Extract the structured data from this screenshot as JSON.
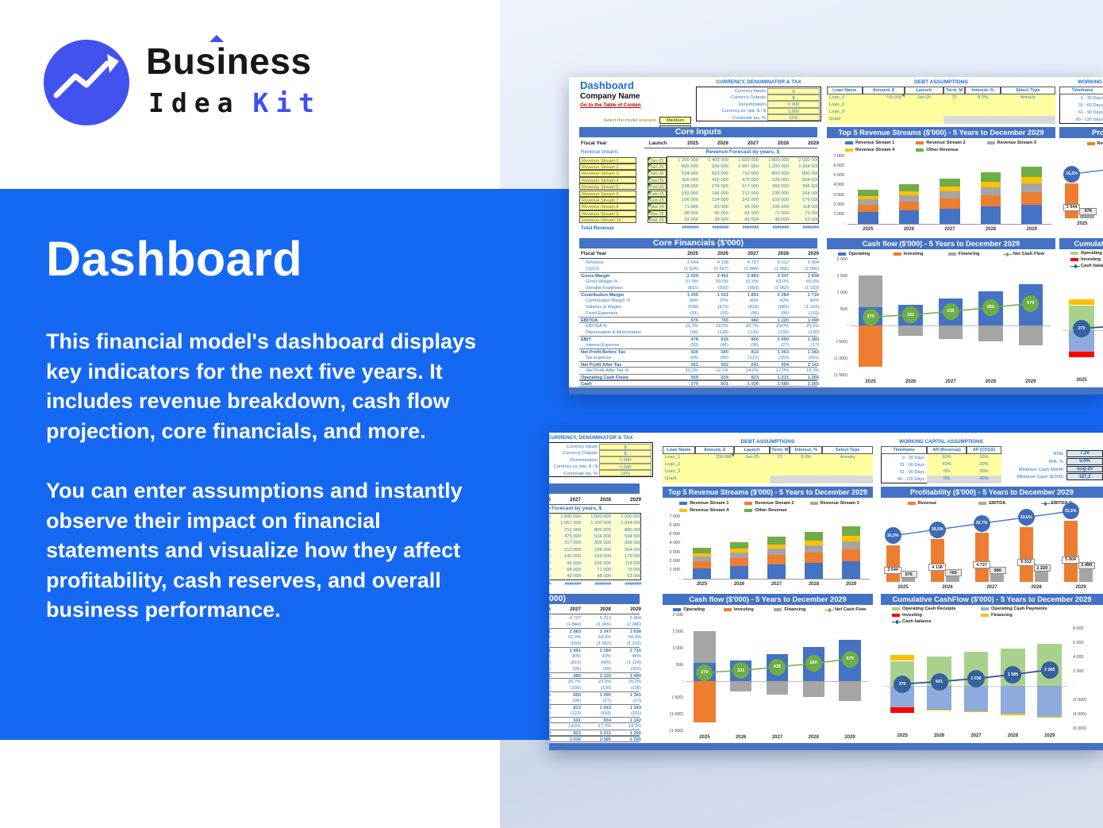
{
  "page": {
    "logo": {
      "brand": "Business",
      "line2_dark": "Idea",
      "line2_accent": "Kit",
      "accent_color": "#3B4FF0"
    },
    "hero": {
      "title": "Dashboard",
      "p1_lines": [
        "This financial model's dashboard displays",
        "key indicators for the next five years. It",
        "includes revenue breakdown, cash flow",
        "projection, core financials, and more."
      ],
      "p2_lines": [
        "You can enter assumptions and instantly",
        "observe their impact on financial",
        "statements and visualize how they affect",
        "profitability, cash reserves, and overall",
        "business performance."
      ]
    },
    "colors": {
      "panel_blue": "#1568F2",
      "header_bar_blue": "#4472C4",
      "input_yellow": "#FFFFA0",
      "link_red": "#C00000",
      "value_blue": "#2E78C0"
    }
  },
  "dashboard": {
    "title": "Dashboard",
    "company": "Company Name",
    "toc_link": "Go to the Table of Conten",
    "scenario": {
      "label": "Select the model scenario",
      "value": "Medium"
    },
    "inventory": {
      "label": "Inventory, %",
      "value": "30.0%"
    },
    "currency_table": {
      "title": "CURRENCY, DENOMINATOR & TAX",
      "rows": [
        [
          "Currency Inputs",
          "$"
        ],
        [
          "Currency Outputs",
          "$"
        ],
        [
          "Denomination",
          "1 000"
        ],
        [
          "Currency ex rate, $ / $",
          "1,000"
        ],
        [
          "Corporate tax, %",
          "15%"
        ]
      ]
    },
    "debt_table": {
      "title": "DEBT ASSUMPTIONS",
      "headers": [
        "Loan Name",
        "Amount, $",
        "Launch",
        "Term, M",
        "Interest, %",
        "Select Type"
      ],
      "rows": [
        [
          "Loan_1",
          "700 000",
          "Jan-25",
          "72",
          "8.0%",
          "Annuity"
        ],
        [
          "Loan_2",
          "",
          "",
          "",
          "",
          ""
        ],
        [
          "Loan_3",
          "",
          "",
          "",
          "",
          ""
        ],
        [
          "Grant",
          "",
          "",
          "",
          "",
          ""
        ]
      ]
    },
    "wc_table": {
      "title": "WORKING CAPITAL ASSUMPTIONS",
      "headers": [
        "Timeframe",
        "AR (Revenue)",
        "AP (COGS)"
      ],
      "rows": [
        [
          "0 - 30 Days",
          "60%",
          "10%"
        ],
        [
          "31 - 60 Days",
          "40%",
          "20%"
        ],
        [
          "61 - 90 Days",
          "0%",
          "30%"
        ],
        [
          "90 - 120 Days",
          "0%",
          "40%"
        ]
      ]
    },
    "kpis": [
      [
        "ROE",
        "7,20"
      ],
      [
        "IRR, %",
        "5,4%"
      ],
      [
        "Minimum Cash Month",
        "Aug-25"
      ],
      [
        "Minimum Cash ($'000)",
        "187,2"
      ]
    ],
    "core_inputs": {
      "title": "Core Inputs",
      "fiscal_year_label": "Fiscal Year",
      "launch_label": "Launch",
      "years": [
        "2025",
        "2026",
        "2027",
        "2028",
        "2029"
      ],
      "streams_label": "Revenue streams",
      "forecast_label": "Revenue Forecast by years, $",
      "rows": [
        {
          "name": "Revenue Stream 1",
          "launch": "Jan-25",
          "values": [
            "1 200 000",
            "1 400 000",
            "1 600 000",
            "1 800 000",
            "2 000 000"
          ]
        },
        {
          "name": "Revenue Stream 2",
          "launch": "Jan-25",
          "values": [
            "800 000",
            "934 000",
            "1 067 000",
            "1 200 000",
            "1 334 000"
          ]
        },
        {
          "name": "Revenue Stream 3",
          "launch": "Jan-25",
          "values": [
            "534 000",
            "623 000",
            "712 000",
            "800 000",
            "890 000"
          ]
        },
        {
          "name": "Revenue Stream 4",
          "launch": "Jan-25",
          "values": [
            "356 000",
            "416 000",
            "475 000",
            "534 000",
            "594 000"
          ]
        },
        {
          "name": "Revenue Stream 5",
          "launch": "Feb-25",
          "values": [
            "238 000",
            "278 000",
            "317 000",
            "356 000",
            "396 000"
          ]
        },
        {
          "name": "Revenue Stream 6",
          "launch": "Feb-25",
          "values": [
            "159 000",
            "186 000",
            "212 000",
            "238 000",
            "264 000"
          ]
        },
        {
          "name": "Revenue Stream 7",
          "launch": "Feb-25",
          "values": [
            "106 000",
            "124 000",
            "142 000",
            "159 000",
            "176 000"
          ]
        },
        {
          "name": "Revenue Stream 8",
          "launch": "Mar-25",
          "values": [
            "71 000",
            "83 000",
            "95 000",
            "106 000",
            "118 000"
          ]
        },
        {
          "name": "Revenue Stream 9",
          "launch": "Mar-25",
          "values": [
            "48 000",
            "56 000",
            "64 000",
            "71 000",
            "79 000"
          ]
        },
        {
          "name": "Revenue Stream 10",
          "launch": "Mar-25",
          "values": [
            "32 000",
            "38 000",
            "43 000",
            "48 000",
            "53 000"
          ]
        }
      ],
      "total_label": "Total Revenue",
      "total_values": [
        "#######",
        "#######",
        "#######",
        "#######",
        "#######"
      ]
    },
    "core_financials": {
      "title": "Core Financials ($'000)",
      "fiscal_year_label": "Fiscal Year",
      "years": [
        "2025",
        "2026",
        "2027",
        "2028",
        "2029"
      ],
      "rows": [
        {
          "label": "Revenue",
          "style": "plain",
          "values": [
            "3 544",
            "4 138",
            "4 727",
            "5 312",
            "5 904"
          ]
        },
        {
          "label": "COGS",
          "style": "plain",
          "values": [
            "(1 524)",
            "(1 697)",
            "(1 844)",
            "(1 965)",
            "(2 066)"
          ]
        },
        {
          "label": "Gross Margin",
          "style": "total",
          "values": [
            "2 020",
            "2 441",
            "2 883",
            "3 347",
            "3 838"
          ]
        },
        {
          "label": "Gross Margin %",
          "style": "pct",
          "values": [
            "57,0%",
            "59,0%",
            "61,0%",
            "63,0%",
            "65,0%"
          ]
        },
        {
          "label": "Variable Expenses",
          "style": "plain",
          "values": [
            "(815)",
            "(910)",
            "(993)",
            "(1 062)",
            "(1 122)"
          ]
        },
        {
          "label": "Contribution Margin",
          "style": "total",
          "values": [
            "1 205",
            "1 531",
            "1 891",
            "2 284",
            "2 716"
          ]
        },
        {
          "label": "Contribution Margin %",
          "style": "pct",
          "values": [
            "34%",
            "37%",
            "40%",
            "43%",
            "46%"
          ]
        },
        {
          "label": "Salaries & Wages",
          "style": "plain",
          "values": [
            "(538)",
            "(673)",
            "(815)",
            "(965)",
            "(1 124)"
          ]
        },
        {
          "label": "Fixed Expenses",
          "style": "plain",
          "values": [
            "(91)",
            "(93)",
            "(96)",
            "(99)",
            "(102)"
          ]
        },
        {
          "label": "EBITDA",
          "style": "total2",
          "values": [
            "576",
            "765",
            "980",
            "1 220",
            "1 490"
          ]
        },
        {
          "label": "EBITDA %",
          "style": "pct",
          "values": [
            "16,3%",
            "18,5%",
            "20,7%",
            "23,0%",
            "25,2%"
          ]
        },
        {
          "label": "Depreciation & Amortization",
          "style": "plain",
          "values": [
            "(98)",
            "(130)",
            "(130)",
            "(130)",
            "(130)"
          ]
        },
        {
          "label": "EBIT",
          "style": "total",
          "values": [
            "478",
            "635",
            "850",
            "1 090",
            "1 360"
          ]
        },
        {
          "label": "Interest Expense",
          "style": "plain",
          "values": [
            "(53)",
            "(46)",
            "(36)",
            "(27)",
            "(17)"
          ]
        },
        {
          "label": "Net Profit Before Tax",
          "style": "total",
          "values": [
            "426",
            "590",
            "813",
            "1 063",
            "1 343"
          ]
        },
        {
          "label": "Tax Expense",
          "style": "plain",
          "values": [
            "(64)",
            "(89)",
            "(122)",
            "(159)",
            "(201)"
          ]
        },
        {
          "label": "Net Profit After Tax",
          "style": "total2",
          "values": [
            "362",
            "502",
            "691",
            "904",
            "1 142"
          ]
        },
        {
          "label": "Net Profit After Tax %",
          "style": "pct",
          "values": [
            "10,2%",
            "12,1%",
            "14,6%",
            "17,0%",
            "19,3%"
          ]
        },
        {
          "label": "Operating Cash Flows",
          "style": "total2",
          "values": [
            "559",
            "634",
            "823",
            "1 031",
            "1 266"
          ]
        },
        {
          "label": "Cash",
          "style": "total2",
          "values": [
            "270",
            "601",
            "1 036",
            "1 585",
            "2 265"
          ]
        }
      ]
    }
  },
  "chart_data": [
    {
      "id": "top5_revenue_streams",
      "type": "bar",
      "variant": "stacked",
      "title": "Top 5 Revenue Streams ($'000) - 5 Years to December 2029",
      "categories": [
        "2025",
        "2026",
        "2027",
        "2028",
        "2029"
      ],
      "ylim": [
        0,
        7000
      ],
      "yticks": [
        "7 000",
        "6 000",
        "5 000",
        "4 000",
        "3 000",
        "2 000",
        "1 000",
        "-"
      ],
      "series": [
        {
          "name": "Revenue Stream 1",
          "color": "#4472C4",
          "values": [
            1200,
            1400,
            1600,
            1800,
            2000
          ]
        },
        {
          "name": "Revenue Stream 2",
          "color": "#ED7D31",
          "values": [
            800,
            934,
            1067,
            1200,
            1334
          ]
        },
        {
          "name": "Revenue Stream 3",
          "color": "#A5A5A5",
          "values": [
            534,
            623,
            712,
            800,
            890
          ]
        },
        {
          "name": "Revenue Stream 4",
          "color": "#FFC000",
          "values": [
            356,
            416,
            475,
            534,
            594
          ]
        },
        {
          "name": "Other Revenue",
          "color": "#70AD47",
          "values": [
            654,
            765,
            873,
            978,
            1086
          ]
        }
      ]
    },
    {
      "id": "profitability",
      "type": "bar",
      "variant": "clustered-with-line",
      "title": "Profitability ($'000) - 5 Years to December 2029",
      "categories": [
        "2025",
        "2026",
        "2027",
        "2028",
        "2029"
      ],
      "ylim": [
        0,
        6900
      ],
      "series": [
        {
          "name": "Revenue",
          "color": "#ED7D31",
          "values": [
            3544,
            4138,
            4727,
            5312,
            5904
          ],
          "labels": [
            "3 544",
            "4 138",
            "4 727",
            "5 312",
            "5 904"
          ]
        },
        {
          "name": "EBITDA",
          "color": "#A5A5A5",
          "values": [
            576,
            765,
            980,
            1220,
            1490
          ],
          "labels": [
            "576",
            "765",
            "980",
            "1 220",
            "1 490"
          ]
        }
      ],
      "line": {
        "name": "EBITDA %",
        "color": "#4472C4",
        "values": [
          16.3,
          18.5,
          20.7,
          23.0,
          25.2
        ],
        "labels": [
          "16,3%",
          "18,5%",
          "20,7%",
          "23,0%",
          "25,2%"
        ]
      }
    },
    {
      "id": "cash_flow",
      "type": "bar",
      "variant": "stacked-with-line",
      "title": "Cash flow ($'000) - 5 Years to December 2029",
      "categories": [
        "2025",
        "2026",
        "2027",
        "2028",
        "2029"
      ],
      "ylim": [
        -1500,
        2000
      ],
      "yticks": [
        "2 000",
        "1 500",
        "1 000",
        "500",
        "-",
        "( 500)",
        "(1 000)",
        "(1 500)"
      ],
      "series": [
        {
          "name": "Operating",
          "color": "#4472C4",
          "values": [
            559,
            634,
            823,
            1031,
            1266
          ]
        },
        {
          "name": "Investing",
          "color": "#ED7D31",
          "values": [
            -1239,
            0,
            0,
            0,
            0
          ]
        },
        {
          "name": "Financing",
          "color": "#A5A5A5",
          "values": [
            950,
            -303,
            -388,
            -481,
            -587
          ]
        }
      ],
      "line": {
        "name": "Net Cash Flow",
        "color": "#70AD47",
        "values": [
          270,
          331,
          435,
          550,
          679
        ],
        "labels": [
          "270",
          "331",
          "435",
          "550",
          "679"
        ]
      }
    },
    {
      "id": "cumulative_cashflow",
      "type": "bar",
      "variant": "stacked-with-line",
      "title": "Cumulative CashFlow ($'000) - 5 Years to December 2029",
      "categories": [
        "2025",
        "2026",
        "2027",
        "2028",
        "2029"
      ],
      "ylim": [
        -6000,
        8000
      ],
      "yticks": [
        "8 000",
        "6 000",
        "4 000",
        "2 000",
        "-",
        "(2 000)",
        "(4 000)",
        "(6 000)"
      ],
      "series": [
        {
          "name": "Operating Cash Receipts",
          "color": "#A9D18E",
          "values": [
            3500,
            4150,
            4750,
            5250,
            5850
          ]
        },
        {
          "name": "Operating Cash Payments",
          "color": "#8FAADC",
          "values": [
            -3050,
            -3350,
            -3550,
            -3900,
            -4300
          ]
        },
        {
          "name": "Financing",
          "color": "#FFC000",
          "values": [
            800,
            -150,
            -150,
            -180,
            -200
          ]
        },
        {
          "name": "Investing",
          "color": "#FF0000",
          "values": [
            -700,
            0,
            0,
            0,
            0
          ]
        }
      ],
      "line": {
        "name": "Cash balance",
        "color": "#2E5597",
        "values": [
          270,
          601,
          1036,
          1585,
          2265
        ],
        "labels": [
          "270",
          "601",
          "1 036",
          "1 585",
          "2 265"
        ]
      },
      "legend_cols": [
        [
          "Operating Cash Receipts",
          "Investing",
          "Cash balance"
        ],
        [
          "Operating Cash Payments",
          "Financing"
        ]
      ]
    }
  ]
}
